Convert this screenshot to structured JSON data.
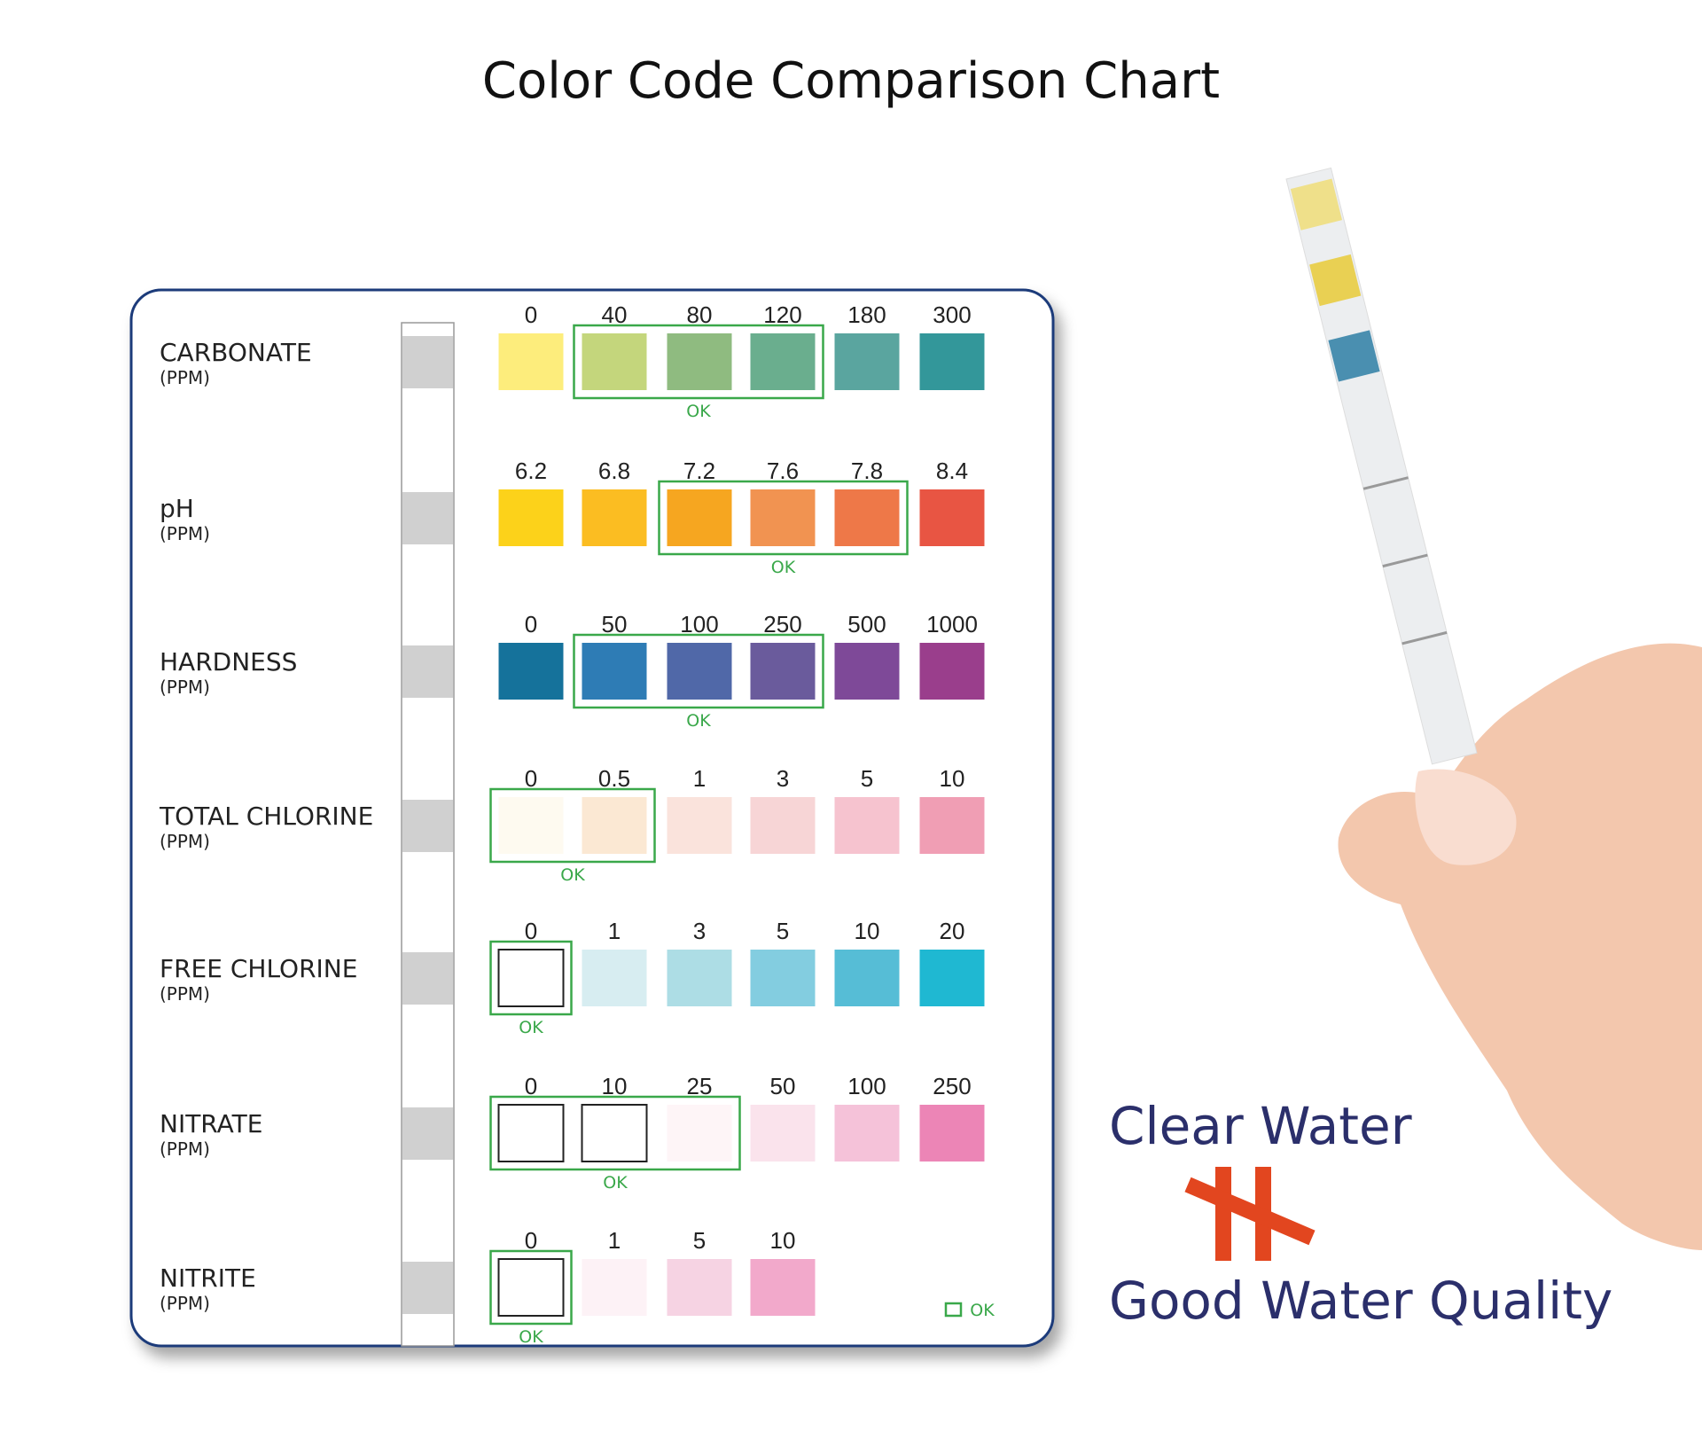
{
  "title": "Color Code Comparison Chart",
  "rows": [
    {
      "name": "CARBONATE",
      "unit": "(PPM)",
      "levels": [
        "0",
        "40",
        "80",
        "120",
        "180",
        "300"
      ],
      "colors": [
        "#fded7c",
        "#c4d67c",
        "#8fbb80",
        "#6aae8e",
        "#5aa59f",
        "#33979a"
      ],
      "ok_label": "OK"
    },
    {
      "name": "pH",
      "unit": "(PPM)",
      "levels": [
        "6.2",
        "6.8",
        "7.2",
        "7.6",
        "7.8",
        "8.4"
      ],
      "colors": [
        "#fcd21a",
        "#fbbd22",
        "#f6a620",
        "#f19351",
        "#ee7848",
        "#e85543"
      ],
      "ok_label": "OK"
    },
    {
      "name": "HARDNESS",
      "unit": "(PPM)",
      "levels": [
        "0",
        "50",
        "100",
        "250",
        "500",
        "1000"
      ],
      "colors": [
        "#15729b",
        "#2e7cb5",
        "#5068a8",
        "#6a5b9c",
        "#7e4998",
        "#9a3e8c"
      ],
      "ok_label": "OK"
    },
    {
      "name": "TOTAL CHLORINE",
      "unit": "(PPM)",
      "levels": [
        "0",
        "0.5",
        "1",
        "3",
        "5",
        "10"
      ],
      "colors": [
        "#fefaf0",
        "#fbe8d3",
        "#fae3dc",
        "#f7d5d6",
        "#f6c3cf",
        "#f09eb4"
      ],
      "ok_label": "OK"
    },
    {
      "name": "FREE CHLORINE",
      "unit": "(PPM)",
      "levels": [
        "0",
        "1",
        "3",
        "5",
        "10",
        "20"
      ],
      "colors": [
        "#ffffff",
        "#d7edf1",
        "#addde5",
        "#83cde0",
        "#56bdd6",
        "#1fb8d2"
      ],
      "ok_label": "OK"
    },
    {
      "name": "NITRATE",
      "unit": "(PPM)",
      "levels": [
        "0",
        "10",
        "25",
        "50",
        "100",
        "250"
      ],
      "colors": [
        "#ffffff",
        "#ffffff",
        "#fef5f7",
        "#fae3ec",
        "#f5c2d9",
        "#ec85b6"
      ],
      "ok_label": "OK"
    },
    {
      "name": "NITRITE",
      "unit": "(PPM)",
      "levels": [
        "0",
        "1",
        "5",
        "10"
      ],
      "colors": [
        "#ffffff",
        "#fdf2f6",
        "#f6d3e3",
        "#f2a9cb"
      ],
      "ok_label": "OK"
    }
  ],
  "legend": "OK",
  "tagline": {
    "top": "Clear Water",
    "bottom": "Good Water Quality"
  }
}
